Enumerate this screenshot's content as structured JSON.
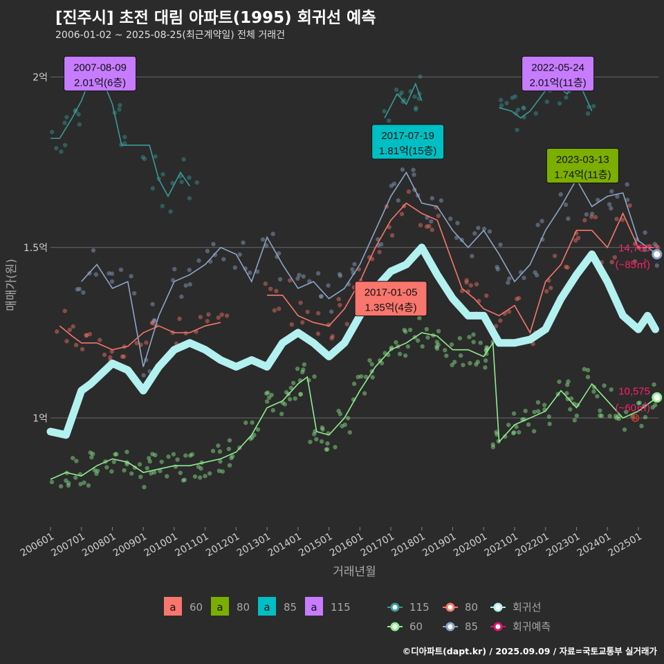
{
  "title": "[진주시] 초전 대림 아파트(1995) 회귀선 예측",
  "subtitle": "2006-01-02 ~ 2025-08-25(최근계약일) 전체 거래건",
  "credit": "©디아파트(dapt.kr) / 2025.09.09 / 자료=국토교통부 실거래가",
  "chart_data": {
    "type": "line",
    "xlabel": "거래년월",
    "ylabel": "매매가(원)",
    "xlim": [
      2006.0,
      2025.65
    ],
    "ylim": [
      0.68,
      2.1
    ],
    "x_ticks": [
      "200601",
      "200701",
      "200801",
      "200901",
      "201001",
      "201101",
      "201201",
      "201301",
      "201401",
      "201501",
      "201601",
      "201701",
      "201801",
      "201901",
      "202001",
      "202101",
      "202201",
      "202301",
      "202401",
      "202501"
    ],
    "y_ticks": [
      {
        "value": 1.0,
        "label": "1억"
      },
      {
        "value": 1.5,
        "label": "1.5억"
      },
      {
        "value": 2.0,
        "label": "2억"
      }
    ],
    "grid": true,
    "colors": {
      "60": "#90ee90",
      "80": "#f8766d",
      "85": "#8fa6c8",
      "115": "#3a9a98",
      "trend": "#b2f1f0",
      "forecast": "#e0146e"
    },
    "series": [
      {
        "name": "60",
        "x": [
          2006.0,
          2006.5,
          2007.0,
          2007.5,
          2008.0,
          2008.5,
          2009.0,
          2009.5,
          2010.0,
          2010.5,
          2011.0,
          2011.5,
          2012.0,
          2012.5,
          2013.0,
          2013.5,
          2014.0,
          2014.3,
          2014.6,
          2015.0,
          2015.5,
          2016.0,
          2016.5,
          2017.0,
          2017.5,
          2018.0,
          2018.5,
          2019.0,
          2019.5,
          2020.0,
          2020.3,
          2020.5,
          2021.0,
          2021.5,
          2022.0,
          2022.5,
          2023.0,
          2023.5,
          2024.0,
          2024.5,
          2025.0,
          2025.6
        ],
        "values": [
          0.82,
          0.84,
          0.83,
          0.86,
          0.88,
          0.87,
          0.84,
          0.85,
          0.86,
          0.86,
          0.87,
          0.88,
          0.9,
          0.95,
          1.03,
          1.05,
          1.1,
          1.12,
          0.96,
          0.95,
          1.0,
          1.08,
          1.15,
          1.2,
          1.22,
          1.25,
          1.24,
          1.2,
          1.2,
          1.18,
          1.22,
          0.93,
          0.98,
          1.0,
          1.02,
          1.08,
          1.03,
          1.1,
          1.05,
          1.0,
          1.02,
          1.06
        ]
      },
      {
        "name": "80",
        "x": [
          2006.3,
          2006.7,
          2007.0,
          2007.5,
          2008.0,
          2008.5,
          2009.0,
          2009.5,
          2010.0,
          2010.5,
          2011.0,
          2011.5,
          2013.0,
          2013.5,
          2014.0,
          2014.5,
          2015.0,
          2015.5,
          2016.0,
          2016.5,
          2017.0,
          2017.5,
          2018.0,
          2018.5,
          2019.3,
          2019.7,
          2020.0,
          2020.5,
          2021.0,
          2021.5,
          2022.0,
          2022.5,
          2023.0,
          2023.5,
          2024.0,
          2024.5,
          2025.0,
          2025.5
        ],
        "values": [
          1.27,
          1.24,
          1.22,
          1.22,
          1.2,
          1.21,
          1.25,
          1.27,
          1.25,
          1.25,
          1.27,
          1.28,
          1.36,
          1.36,
          1.3,
          1.28,
          1.27,
          1.32,
          1.4,
          1.5,
          1.58,
          1.63,
          1.6,
          1.58,
          1.38,
          1.35,
          1.32,
          1.3,
          1.33,
          1.25,
          1.4,
          1.45,
          1.55,
          1.55,
          1.5,
          1.6,
          1.5,
          1.5
        ]
      },
      {
        "name": "85",
        "x": [
          2007.0,
          2007.5,
          2008.0,
          2008.5,
          2009.0,
          2009.5,
          2010.0,
          2010.5,
          2011.0,
          2011.5,
          2012.0,
          2012.5,
          2013.0,
          2013.5,
          2014.0,
          2014.5,
          2015.0,
          2015.5,
          2016.0,
          2016.5,
          2017.0,
          2017.5,
          2018.0,
          2018.5,
          2019.0,
          2019.5,
          2020.0,
          2020.5,
          2021.0,
          2021.5,
          2022.0,
          2022.5,
          2023.0,
          2023.5,
          2024.0,
          2024.5,
          2025.0,
          2025.6
        ],
        "values": [
          1.4,
          1.45,
          1.38,
          1.4,
          1.15,
          1.3,
          1.4,
          1.42,
          1.45,
          1.5,
          1.48,
          1.4,
          1.53,
          1.45,
          1.38,
          1.4,
          1.35,
          1.38,
          1.45,
          1.55,
          1.65,
          1.72,
          1.63,
          1.62,
          1.55,
          1.5,
          1.55,
          1.48,
          1.4,
          1.45,
          1.55,
          1.62,
          1.7,
          1.62,
          1.65,
          1.66,
          1.52,
          1.48
        ]
      },
      {
        "name": "115",
        "x": [
          2006.0,
          2006.3,
          2006.7,
          2007.0,
          2007.3,
          2007.6,
          2008.0,
          2008.3,
          2009.2,
          2009.5,
          2009.8,
          2010.2,
          2010.5,
          2016.8,
          2017.2,
          2017.5,
          2017.8,
          2018.0,
          2020.5,
          2020.9,
          2021.2,
          2021.5,
          2022.0,
          2022.3,
          2022.7,
          2023.0,
          2023.5
        ],
        "values": [
          1.82,
          1.82,
          1.88,
          1.93,
          2.0,
          2.01,
          1.92,
          1.8,
          1.8,
          1.7,
          1.65,
          1.72,
          1.68,
          1.88,
          1.95,
          1.92,
          1.98,
          1.93,
          1.91,
          1.9,
          1.88,
          1.9,
          1.96,
          1.98,
          1.95,
          2.0,
          1.9
        ]
      },
      {
        "name": "회귀선",
        "x": [
          2006.0,
          2006.5,
          2007.0,
          2007.3,
          2008.0,
          2008.5,
          2009.0,
          2009.5,
          2010.0,
          2010.5,
          2011.0,
          2011.5,
          2012.0,
          2012.5,
          2013.0,
          2013.5,
          2014.0,
          2014.5,
          2015.0,
          2015.5,
          2016.0,
          2016.5,
          2017.0,
          2017.5,
          2018.0,
          2018.5,
          2019.0,
          2019.5,
          2020.0,
          2020.5,
          2021.0,
          2021.5,
          2022.0,
          2022.5,
          2023.0,
          2023.5,
          2024.0,
          2024.5,
          2025.0,
          2025.3,
          2025.55
        ],
        "values": [
          0.96,
          0.95,
          1.08,
          1.1,
          1.16,
          1.14,
          1.08,
          1.15,
          1.2,
          1.22,
          1.2,
          1.17,
          1.15,
          1.17,
          1.15,
          1.22,
          1.25,
          1.22,
          1.18,
          1.22,
          1.3,
          1.38,
          1.43,
          1.45,
          1.5,
          1.42,
          1.35,
          1.3,
          1.3,
          1.22,
          1.22,
          1.23,
          1.26,
          1.35,
          1.42,
          1.48,
          1.4,
          1.3,
          1.26,
          1.3,
          1.26
        ]
      }
    ],
    "markers": [
      {
        "series": "85",
        "x": 2025.6,
        "value": 1.48
      },
      {
        "series": "60",
        "x": 2025.6,
        "value": 1.06
      },
      {
        "series": "회귀예측",
        "x": 2024.9,
        "value": 1.0
      }
    ],
    "annotations": [
      {
        "date": "2007-08-09",
        "price": "2.01억(6층)",
        "x": 2007.6,
        "value": 2.01,
        "fill": "#c77cff"
      },
      {
        "date": "2017-07-19",
        "price": "1.81억(15층)",
        "x": 2017.55,
        "value": 1.81,
        "fill": "#00bfc4"
      },
      {
        "date": "2022-05-24",
        "price": "2.01억(11층)",
        "x": 2022.4,
        "value": 2.01,
        "fill": "#c77cff"
      },
      {
        "date": "2023-03-13",
        "price": "1.74억(11층)",
        "x": 2023.2,
        "value": 1.74,
        "fill": "#7cae00"
      },
      {
        "date": "2017-01-05",
        "price": "1.35억(4층)",
        "x": 2017.0,
        "value": 1.35,
        "fill": "#f8766d"
      }
    ],
    "end_labels": [
      {
        "value_text": "14,783",
        "area_text": "(~85㎡)",
        "y": 1.48
      },
      {
        "value_text": "10,575",
        "area_text": "(~60㎡)",
        "y": 1.06
      }
    ]
  },
  "legend_fill": [
    {
      "key": "60",
      "glyph": "a",
      "color": "#f8766d"
    },
    {
      "key": "80",
      "glyph": "a",
      "color": "#7cae00"
    },
    {
      "key": "85",
      "glyph": "a",
      "color": "#00bfc4"
    },
    {
      "key": "115",
      "glyph": "a",
      "color": "#c77cff"
    }
  ],
  "legend_line": [
    {
      "key": "115",
      "color": "#3a9a98"
    },
    {
      "key": "80",
      "color": "#f8766d"
    },
    {
      "key": "회귀선",
      "color": "#b2f1f0"
    },
    {
      "key": "60",
      "color": "#90ee90"
    },
    {
      "key": "85",
      "color": "#8fa6c8"
    },
    {
      "key": "회귀예측",
      "color": "#e0146e"
    }
  ]
}
